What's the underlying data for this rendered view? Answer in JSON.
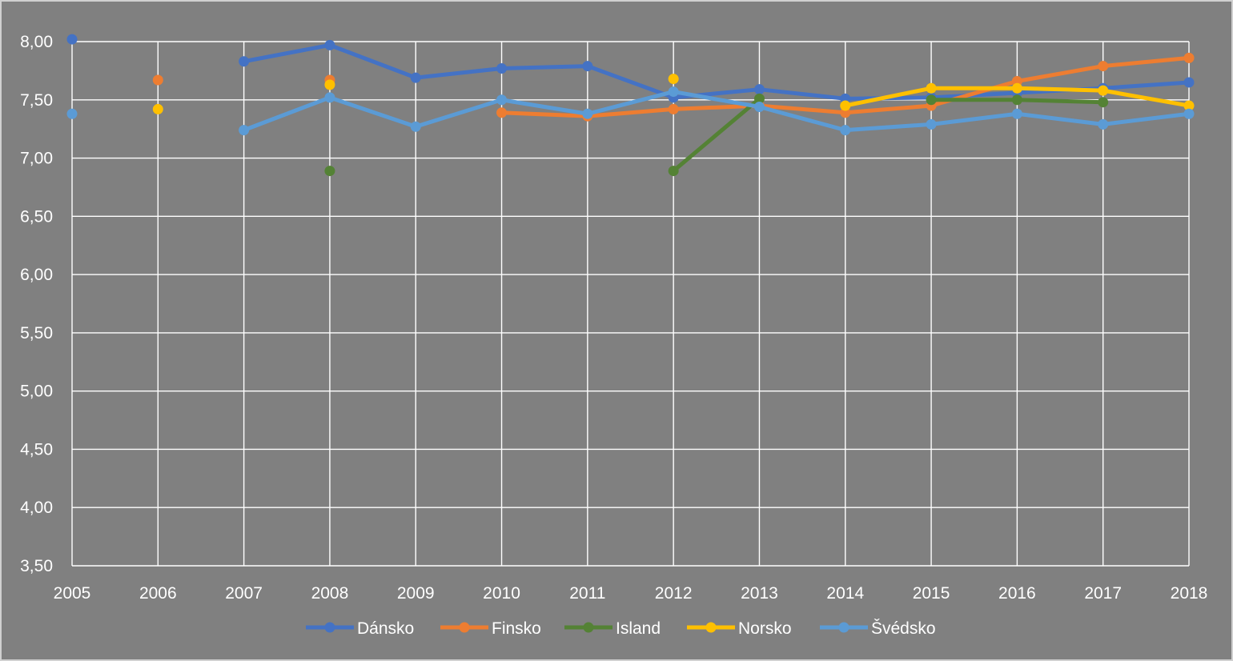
{
  "chart_data": {
    "type": "line",
    "title": "",
    "xlabel": "",
    "ylabel": "",
    "x": [
      "2005",
      "2006",
      "2007",
      "2008",
      "2009",
      "2010",
      "2011",
      "2012",
      "2013",
      "2014",
      "2015",
      "2016",
      "2017",
      "2018"
    ],
    "ylim": [
      3.5,
      8.0
    ],
    "yticks": [
      "3,50",
      "4,00",
      "4,50",
      "5,00",
      "5,50",
      "6,00",
      "6,50",
      "7,00",
      "7,50",
      "8,00"
    ],
    "grid": true,
    "legend": "bottom",
    "series": [
      {
        "name": "Dánsko",
        "color": "#4472C4",
        "values": [
          8.02,
          null,
          7.83,
          7.97,
          7.69,
          7.77,
          7.79,
          7.52,
          7.59,
          7.51,
          7.52,
          7.56,
          7.6,
          7.65
        ]
      },
      {
        "name": "Finsko",
        "color": "#ED7D31",
        "values": [
          null,
          7.67,
          null,
          7.67,
          null,
          7.39,
          7.36,
          7.42,
          7.45,
          7.39,
          7.45,
          7.66,
          7.79,
          7.86
        ]
      },
      {
        "name": "Island",
        "color": "#548235",
        "values": [
          null,
          null,
          null,
          6.89,
          null,
          null,
          null,
          6.89,
          7.51,
          null,
          7.5,
          7.5,
          7.48,
          null
        ]
      },
      {
        "name": "Norsko",
        "color": "#FFC000",
        "values": [
          null,
          7.42,
          null,
          7.63,
          null,
          null,
          null,
          7.68,
          null,
          7.45,
          7.6,
          7.6,
          7.58,
          7.45
        ]
      },
      {
        "name": "Švédsko",
        "color": "#5B9BD5",
        "values": [
          7.38,
          null,
          7.24,
          7.52,
          7.27,
          7.5,
          7.38,
          7.57,
          7.44,
          7.24,
          7.29,
          7.38,
          7.29,
          7.38
        ]
      }
    ]
  }
}
